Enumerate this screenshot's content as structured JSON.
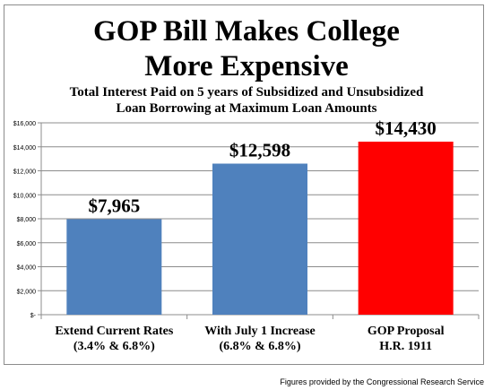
{
  "title_line1": "GOP Bill Makes College",
  "title_line2": "More Expensive",
  "subtitle_line1": "Total Interest Paid on 5 years of Subsidized and Unsubsidized",
  "subtitle_line2": "Loan Borrowing at Maximum Loan Amounts",
  "footer": "Figures provided by the Congressional Research Service",
  "chart_data": {
    "type": "bar",
    "categories": [
      [
        "Extend Current Rates",
        "(3.4% & 6.8%)"
      ],
      [
        "With July 1 Increase",
        "(6.8% & 6.8%)"
      ],
      [
        "GOP Proposal",
        "H.R. 1911"
      ]
    ],
    "values": [
      7965,
      12598,
      14430
    ],
    "data_labels": [
      "$7,965",
      "$12,598",
      "$14,430"
    ],
    "bar_colors": [
      "#4f81bd",
      "#4f81bd",
      "#ff0000"
    ],
    "ylim": [
      0,
      16000
    ],
    "yticks": [
      0,
      2000,
      4000,
      6000,
      8000,
      10000,
      12000,
      14000,
      16000
    ],
    "ytick_labels": [
      "$-",
      "$2,000",
      "$4,000",
      "$6,000",
      "$8,000",
      "$10,000",
      "$12,000",
      "$14,000",
      "$16,000"
    ],
    "grid": true
  }
}
